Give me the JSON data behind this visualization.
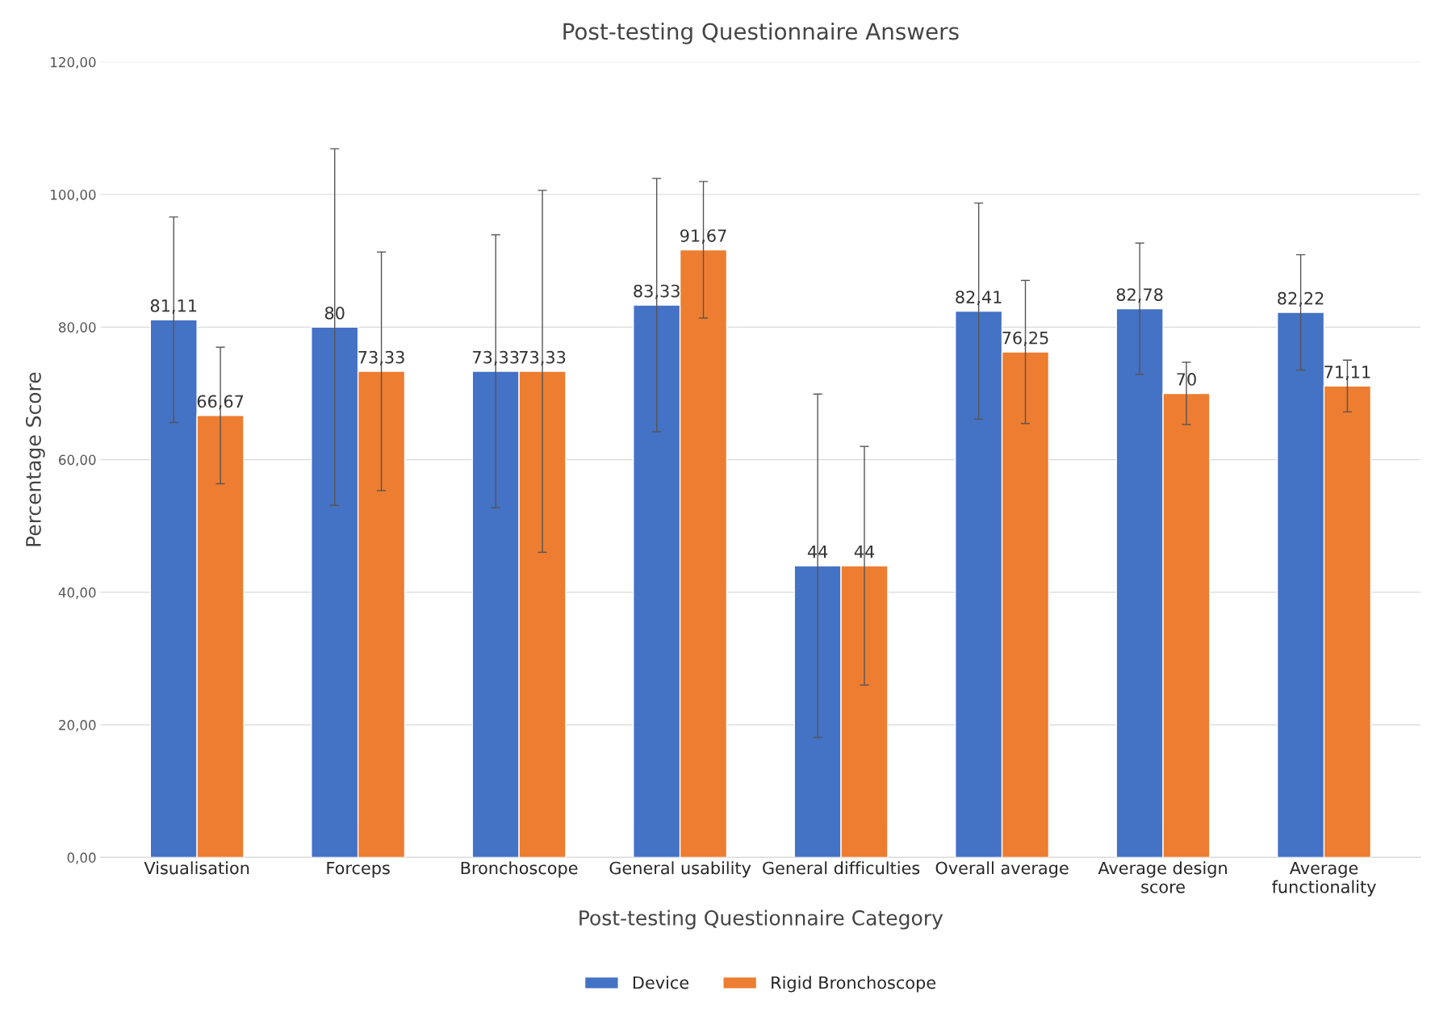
{
  "chart_data": {
    "type": "bar",
    "title": "Post-testing Questionnaire Answers",
    "xlabel": "Post-testing Questionnaire Category",
    "ylabel": "Percentage Score",
    "categories": [
      "Visualisation",
      "Forceps",
      "Bronchoscope",
      "General usability",
      "General difficulties",
      "Overall average",
      "Average design\nscore",
      "Average\nfunctionality"
    ],
    "series": [
      {
        "name": "Device",
        "color": "#4472c4",
        "values": [
          81.11,
          80,
          73.33,
          83.33,
          44,
          82.41,
          82.78,
          82.22
        ],
        "errors": [
          15.5,
          26.9,
          20.6,
          19.1,
          25.9,
          16.3,
          9.9,
          8.7
        ],
        "value_labels": [
          "81,11",
          "80",
          "73,33",
          "83,33",
          "44",
          "82,41",
          "82,78",
          "82,22"
        ]
      },
      {
        "name": "Rigid Bronchoscope",
        "color": "#ed7d31",
        "values": [
          66.67,
          73.33,
          73.33,
          91.67,
          44,
          76.25,
          70,
          71.11
        ],
        "errors": [
          10.3,
          18,
          27.3,
          10.3,
          18,
          10.8,
          4.7,
          3.9
        ],
        "value_labels": [
          "66,67",
          "73,33",
          "73,33",
          "91,67",
          "44",
          "76,25",
          "70",
          "71,11"
        ]
      }
    ],
    "ylim": [
      0,
      120
    ],
    "yticks": [
      {
        "value": 0,
        "label": "0,00"
      },
      {
        "value": 20,
        "label": "20,00"
      },
      {
        "value": 40,
        "label": "40,00"
      },
      {
        "value": 60,
        "label": "60,00"
      },
      {
        "value": 80,
        "label": "80,00"
      },
      {
        "value": 100,
        "label": "100,00"
      },
      {
        "value": 120,
        "label": "120,00"
      }
    ],
    "grid": "y",
    "legend": "bottom"
  }
}
